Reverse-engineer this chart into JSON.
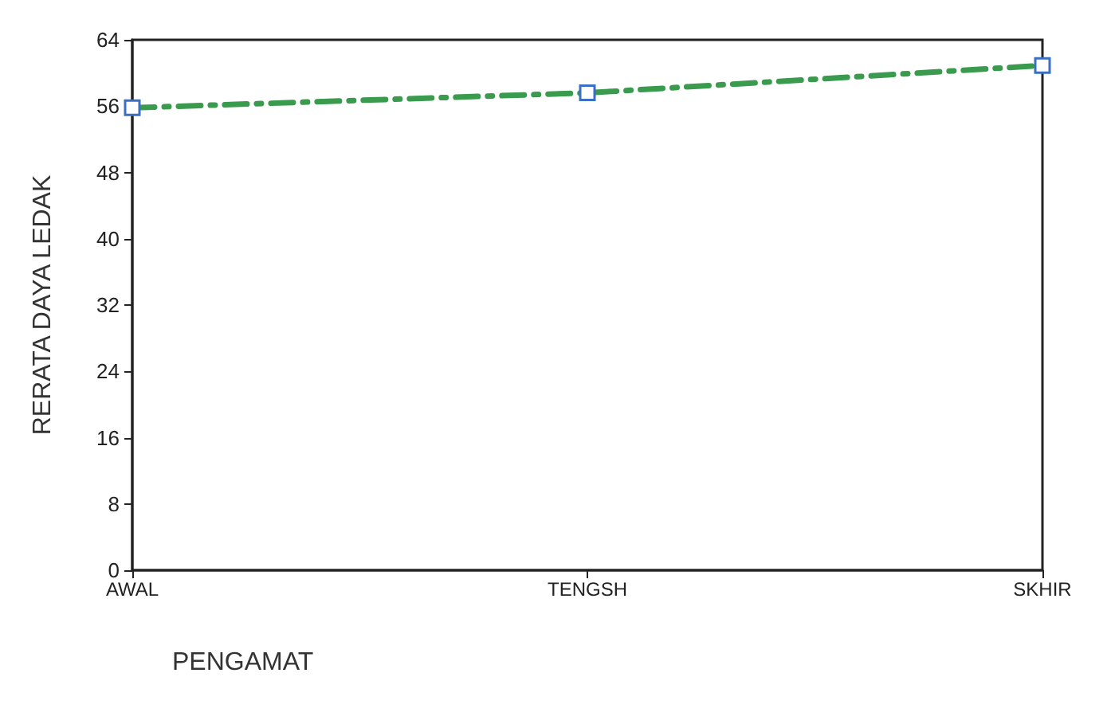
{
  "chart_data": {
    "type": "line",
    "xlabel": "PENGAMAT",
    "ylabel": "RERATA DAYA LEDAK",
    "categories": [
      "AWAL",
      "TENGSH",
      "SKHIR"
    ],
    "series": [
      {
        "color": "#3a9a4e",
        "values": [
          55.8,
          57.6,
          60.9
        ]
      }
    ],
    "ylim": [
      0,
      64
    ],
    "yticks": [
      0,
      8,
      16,
      24,
      32,
      40,
      48,
      56,
      64
    ],
    "grid": false,
    "marker": "square",
    "line_style": "dashed"
  }
}
